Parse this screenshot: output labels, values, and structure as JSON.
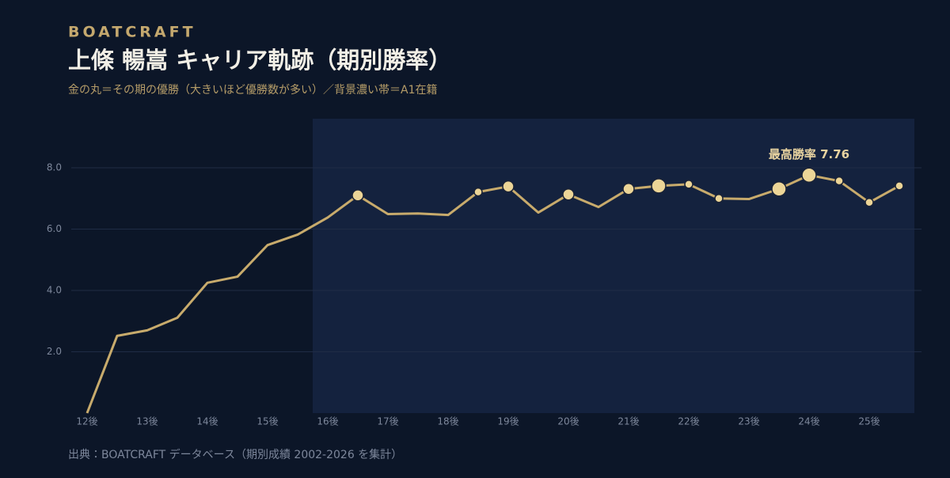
{
  "brand": "BOATCRAFT",
  "chart_data": {
    "type": "line",
    "title": "上條 暢嵩  キャリア軌跡（期別勝率）",
    "subtitle": "金の丸＝その期の優勝（大きいほど優勝数が多い）／背景濃い帯＝A1在籍",
    "source": "出典：BOATCRAFT データベース（期別成績 2002-2026 を集計）",
    "annotation": "最高勝率 7.76",
    "categories": [
      "12後",
      null,
      "13後",
      null,
      "14後",
      null,
      "15後",
      null,
      "16後",
      null,
      "17後",
      null,
      "18後",
      null,
      "19後",
      null,
      "20後",
      null,
      "21後",
      null,
      "22後",
      null,
      "23後",
      null,
      "24後",
      null,
      "25後",
      null
    ],
    "values": [
      0.0,
      2.52,
      2.7,
      3.11,
      4.25,
      4.45,
      5.48,
      5.82,
      6.38,
      7.1,
      6.49,
      6.51,
      6.46,
      7.21,
      7.39,
      6.54,
      7.13,
      6.72,
      7.31,
      7.41,
      7.46,
      7.0,
      6.98,
      7.31,
      7.76,
      7.57,
      6.87,
      7.41
    ],
    "wins": [
      null,
      null,
      null,
      null,
      null,
      null,
      null,
      null,
      null,
      2,
      null,
      null,
      null,
      1,
      2,
      null,
      2,
      null,
      2,
      3,
      1,
      1,
      null,
      3,
      3,
      1,
      1,
      1
    ],
    "a1": [
      false,
      false,
      false,
      false,
      false,
      false,
      false,
      false,
      true,
      true,
      true,
      true,
      true,
      true,
      true,
      true,
      true,
      true,
      true,
      true,
      true,
      true,
      true,
      true,
      true,
      true,
      true,
      true
    ],
    "color": "#c8ab6c",
    "marker_color": "#ecd597",
    "band_color": "#14223e",
    "ylim": [
      0,
      9.6
    ],
    "yticks": [
      {
        "value": 2,
        "label": "2.0"
      },
      {
        "value": 4,
        "label": "4.0"
      },
      {
        "value": 6,
        "label": "6.0"
      },
      {
        "value": 8,
        "label": "8.0"
      }
    ],
    "grid": true
  }
}
